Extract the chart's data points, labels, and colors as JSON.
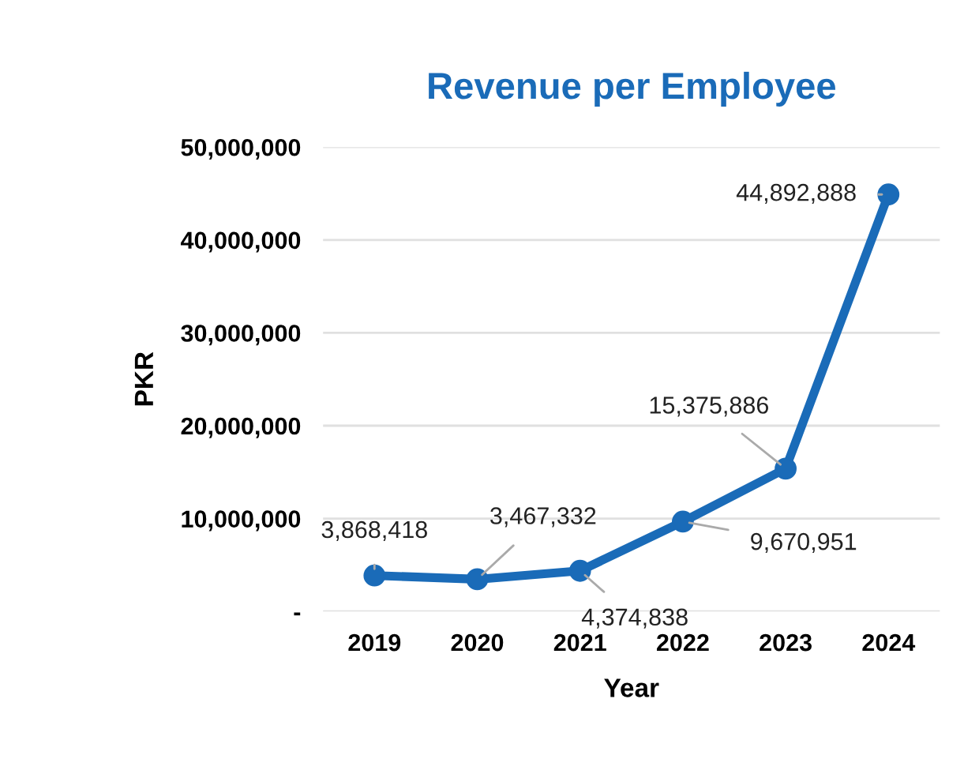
{
  "chart_data": {
    "type": "line",
    "title": "Revenue per Employee",
    "xlabel": "Year",
    "ylabel": "PKR",
    "categories": [
      "2019",
      "2020",
      "2021",
      "2022",
      "2023",
      "2024"
    ],
    "series": [
      {
        "color": "#1a6bb8",
        "values": [
          3868418,
          3467332,
          4374838,
          9670951,
          15375886,
          44892888
        ],
        "value_labels": [
          "3,868,418",
          "3,467,332",
          "4,374,838",
          "9,670,951",
          "15,375,886",
          "44,892,888"
        ]
      }
    ],
    "ylim": [
      0,
      50000000
    ],
    "yticks": [
      {
        "value": 0,
        "label": "-"
      },
      {
        "value": 10000000,
        "label": "10,000,000"
      },
      {
        "value": 20000000,
        "label": "20,000,000"
      },
      {
        "value": 30000000,
        "label": "30,000,000"
      },
      {
        "value": 40000000,
        "label": "40,000,000"
      },
      {
        "value": 50000000,
        "label": "50,000,000"
      }
    ],
    "grid": "y",
    "marker": "circle",
    "line_style": "solid"
  }
}
